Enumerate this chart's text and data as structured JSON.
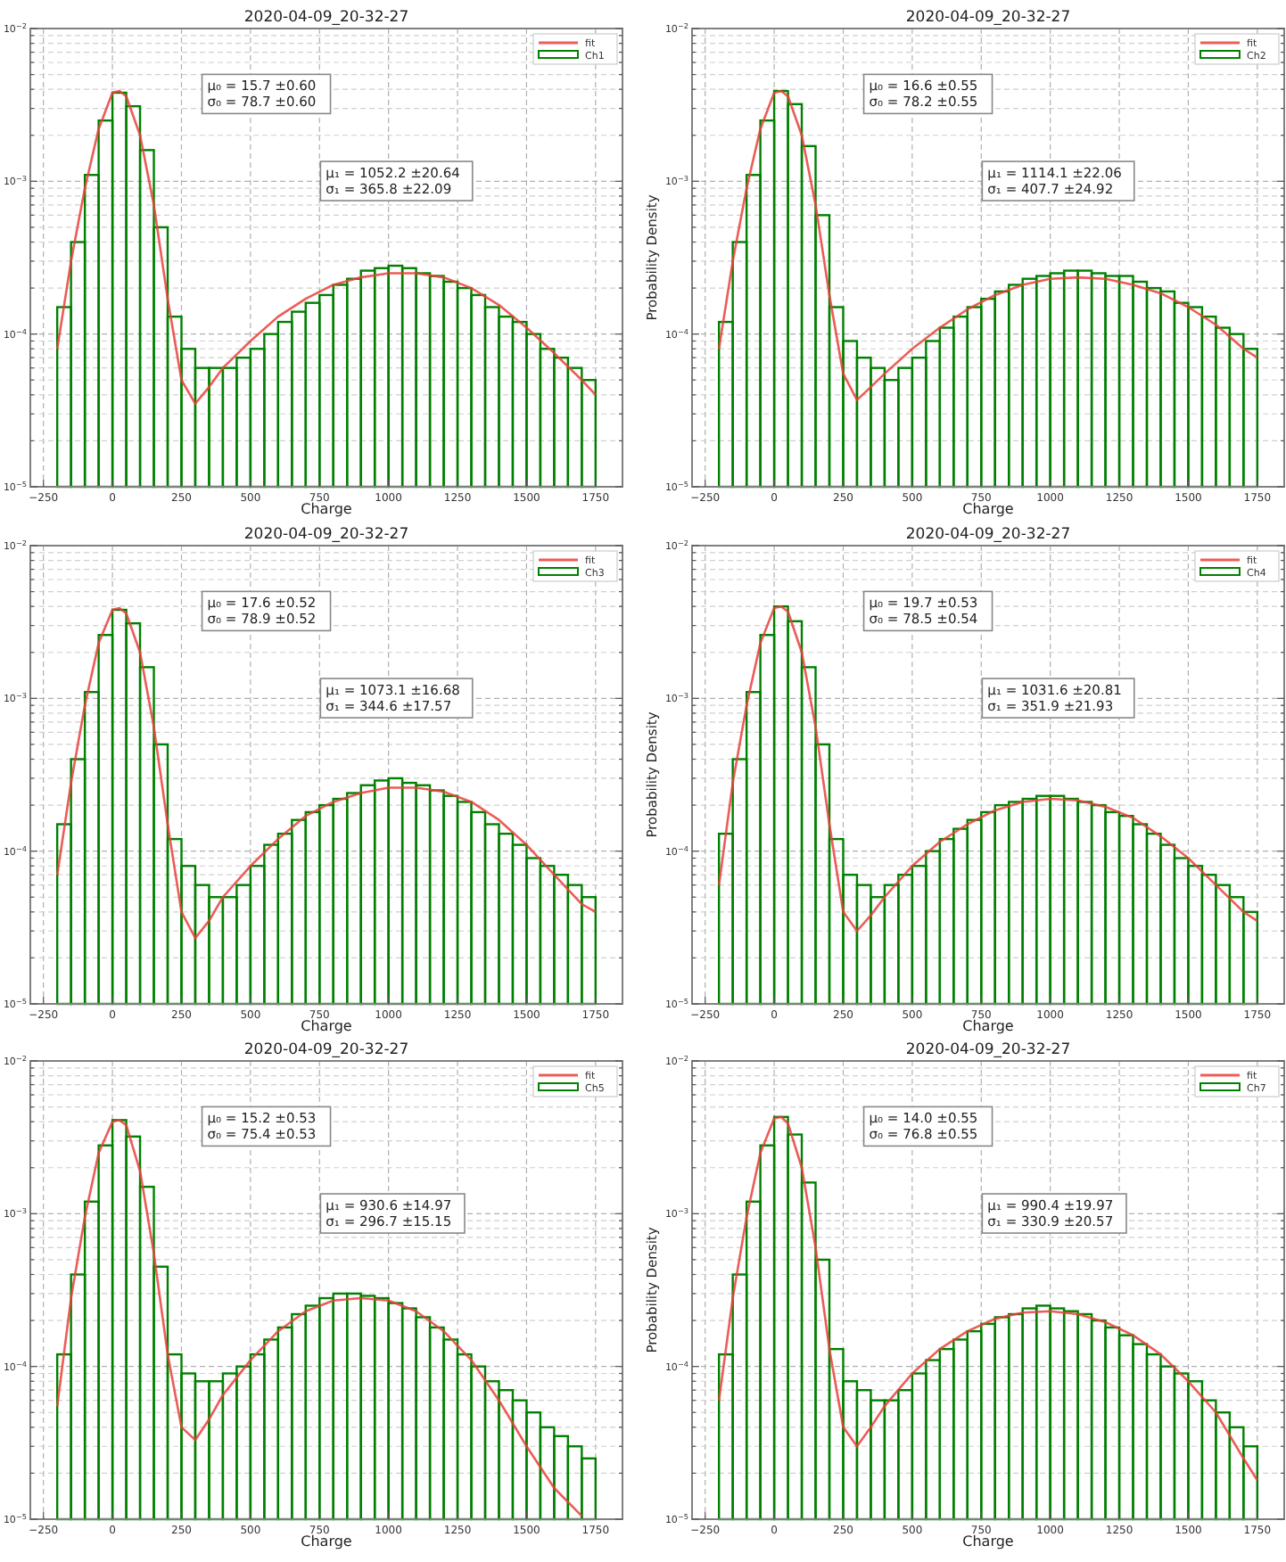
{
  "chart_data": [
    {
      "type": "histogram",
      "title": "2020-04-09_20-32-27",
      "xlabel": "Charge",
      "log": "y",
      "grid": true,
      "legend": "top right",
      "xlim": [
        -297.5,
        1847.5
      ],
      "ylim": [
        1e-05,
        0.01
      ],
      "xticks": [
        -250,
        0,
        250,
        500,
        750,
        1000,
        1250,
        1500,
        1750
      ],
      "yticks": [
        {
          "value": 1e-05,
          "label": "10$^{−5}$"
        },
        {
          "value": 2e-05,
          "label": null
        },
        {
          "value": 3e-05,
          "label": null
        },
        {
          "value": 4e-05,
          "label": null
        },
        {
          "value": 5e-05,
          "label": null
        },
        {
          "value": 6e-05,
          "label": null
        },
        {
          "value": 7e-05,
          "label": null
        },
        {
          "value": 8e-05,
          "label": null
        },
        {
          "value": 9e-05,
          "label": null
        },
        {
          "value": 0.0001,
          "label": "10$^{−4}$"
        },
        {
          "value": 0.0002,
          "label": null
        },
        {
          "value": 0.0003,
          "label": null
        },
        {
          "value": 0.0004,
          "label": null
        },
        {
          "value": 0.0005,
          "label": null
        },
        {
          "value": 0.0006,
          "label": null
        },
        {
          "value": 0.0007,
          "label": null
        },
        {
          "value": 0.0008,
          "label": null
        },
        {
          "value": 0.0009,
          "label": null
        },
        {
          "value": 0.001,
          "label": "10$^{−3}$"
        },
        {
          "value": 0.002,
          "label": null
        },
        {
          "value": 0.003,
          "label": null
        },
        {
          "value": 0.004,
          "label": null
        },
        {
          "value": 0.005,
          "label": null
        },
        {
          "value": 0.006,
          "label": null
        },
        {
          "value": 0.007,
          "label": null
        },
        {
          "value": 0.008,
          "label": null
        },
        {
          "value": 0.009,
          "label": null
        },
        {
          "value": 0.01,
          "label": "10$^{−2}$"
        }
      ],
      "annotations": [
        "μ₀ = 15.7 ±0.60",
        "σ₀ = 78.7 ±0.60",
        "μ₁ = 1052.2 ±20.64",
        "σ₁ = 365.8 ±22.09"
      ],
      "bins": [
        -200,
        -150,
        -100,
        -50,
        0,
        50,
        100,
        150,
        200,
        250,
        300,
        350,
        400,
        450,
        500,
        550,
        600,
        650,
        700,
        750,
        800,
        850,
        900,
        950,
        1000,
        1050,
        1100,
        1150,
        1200,
        1250,
        1300,
        1350,
        1400,
        1450,
        1500,
        1550,
        1600,
        1650,
        1700,
        1750
      ],
      "series": [
        {
          "name": "fit",
          "type": "line",
          "color": "#e8413a",
          "x": [
            -200,
            -150,
            -100,
            -50,
            0,
            25,
            50,
            100,
            150,
            200,
            250,
            300,
            350,
            400,
            500,
            600,
            700,
            800,
            900,
            1000,
            1100,
            1200,
            1300,
            1400,
            1500,
            1600,
            1700,
            1750
          ],
          "values": [
            8e-05,
            0.0003,
            0.0009,
            0.0022,
            0.0038,
            0.0039,
            0.0036,
            0.002,
            0.0007,
            0.00017,
            5e-05,
            3.5e-05,
            4.5e-05,
            6e-05,
            9e-05,
            0.00013,
            0.00017,
            0.00021,
            0.000235,
            0.00025,
            0.00025,
            0.000235,
            0.0002,
            0.000155,
            0.00011,
            7.5e-05,
            5e-05,
            4e-05
          ]
        },
        {
          "name": "Ch1",
          "type": "histogram",
          "color": "#008000",
          "values": [
            0.00015,
            0.0004,
            0.0011,
            0.0025,
            0.0038,
            0.0031,
            0.0016,
            0.0005,
            0.00013,
            8e-05,
            6e-05,
            6e-05,
            6e-05,
            7e-05,
            8e-05,
            0.0001,
            0.00012,
            0.00014,
            0.00016,
            0.00018,
            0.00021,
            0.00023,
            0.00026,
            0.00027,
            0.00028,
            0.00027,
            0.00025,
            0.00024,
            0.00022,
            0.0002,
            0.00018,
            0.00015,
            0.00013,
            0.00012,
            0.0001,
            8e-05,
            7e-05,
            6e-05,
            5e-05
          ]
        }
      ]
    },
    {
      "type": "histogram",
      "title": "2020-04-09_20-32-27",
      "xlabel": "Charge",
      "ylabel": "Probability Density",
      "log": "y",
      "grid": true,
      "legend": "top right",
      "xlim": [
        -297.5,
        1847.5
      ],
      "ylim": [
        1e-05,
        0.01
      ],
      "xticks": [
        -250,
        0,
        250,
        500,
        750,
        1000,
        1250,
        1500,
        1750
      ],
      "yticks": [
        {
          "value": 1e-05,
          "label": "10$^{−5}$"
        },
        {
          "value": 2e-05,
          "label": null
        },
        {
          "value": 3e-05,
          "label": null
        },
        {
          "value": 4e-05,
          "label": null
        },
        {
          "value": 5e-05,
          "label": null
        },
        {
          "value": 6e-05,
          "label": null
        },
        {
          "value": 7e-05,
          "label": null
        },
        {
          "value": 8e-05,
          "label": null
        },
        {
          "value": 9e-05,
          "label": null
        },
        {
          "value": 0.0001,
          "label": "10$^{−4}$"
        },
        {
          "value": 0.0002,
          "label": null
        },
        {
          "value": 0.0003,
          "label": null
        },
        {
          "value": 0.0004,
          "label": null
        },
        {
          "value": 0.0005,
          "label": null
        },
        {
          "value": 0.0006,
          "label": null
        },
        {
          "value": 0.0007,
          "label": null
        },
        {
          "value": 0.0008,
          "label": null
        },
        {
          "value": 0.0009,
          "label": null
        },
        {
          "value": 0.001,
          "label": "10$^{−3}$"
        },
        {
          "value": 0.002,
          "label": null
        },
        {
          "value": 0.003,
          "label": null
        },
        {
          "value": 0.004,
          "label": null
        },
        {
          "value": 0.005,
          "label": null
        },
        {
          "value": 0.006,
          "label": null
        },
        {
          "value": 0.007,
          "label": null
        },
        {
          "value": 0.008,
          "label": null
        },
        {
          "value": 0.009,
          "label": null
        },
        {
          "value": 0.01,
          "label": "10$^{−2}$"
        }
      ],
      "annotations": [
        "μ₀ = 16.6 ±0.55",
        "σ₀ = 78.2 ±0.55",
        "μ₁ = 1114.1 ±22.06",
        "σ₁ = 407.7 ±24.92"
      ],
      "bins": [
        -200,
        -150,
        -100,
        -50,
        0,
        50,
        100,
        150,
        200,
        250,
        300,
        350,
        400,
        450,
        500,
        550,
        600,
        650,
        700,
        750,
        800,
        850,
        900,
        950,
        1000,
        1050,
        1100,
        1150,
        1200,
        1250,
        1300,
        1350,
        1400,
        1450,
        1500,
        1550,
        1600,
        1650,
        1700,
        1750
      ],
      "series": [
        {
          "name": "fit",
          "type": "line",
          "color": "#e8413a",
          "x": [
            -200,
            -150,
            -100,
            -50,
            0,
            25,
            50,
            100,
            150,
            200,
            250,
            300,
            350,
            400,
            500,
            600,
            700,
            800,
            900,
            1000,
            1100,
            1200,
            1300,
            1400,
            1500,
            1600,
            1700,
            1750
          ],
          "values": [
            8e-05,
            0.0003,
            0.0009,
            0.0022,
            0.0038,
            0.0039,
            0.0036,
            0.002,
            0.0007,
            0.00018,
            5.5e-05,
            3.7e-05,
            4.5e-05,
            5.5e-05,
            8e-05,
            0.00011,
            0.000145,
            0.00018,
            0.00021,
            0.00023,
            0.000235,
            0.00023,
            0.00021,
            0.000185,
            0.00015,
            0.000115,
            8e-05,
            7e-05
          ]
        },
        {
          "name": "Ch2",
          "type": "histogram",
          "color": "#008000",
          "values": [
            0.00012,
            0.0004,
            0.0011,
            0.0025,
            0.0039,
            0.0032,
            0.0017,
            0.0006,
            0.00015,
            9e-05,
            7e-05,
            6e-05,
            5e-05,
            6e-05,
            7e-05,
            9e-05,
            0.00011,
            0.00013,
            0.00015,
            0.00017,
            0.00019,
            0.00021,
            0.00023,
            0.00024,
            0.00025,
            0.00026,
            0.00026,
            0.00025,
            0.00024,
            0.00024,
            0.00022,
            0.0002,
            0.00019,
            0.00016,
            0.00015,
            0.00013,
            0.00011,
            0.0001,
            8e-05
          ]
        }
      ]
    },
    {
      "type": "histogram",
      "title": "2020-04-09_20-32-27",
      "xlabel": "Charge",
      "log": "y",
      "grid": true,
      "legend": "top right",
      "xlim": [
        -297.5,
        1847.5
      ],
      "ylim": [
        1e-05,
        0.01
      ],
      "xticks": [
        -250,
        0,
        250,
        500,
        750,
        1000,
        1250,
        1500,
        1750
      ],
      "yticks": [
        {
          "value": 1e-05,
          "label": "10$^{−5}$"
        },
        {
          "value": 2e-05,
          "label": null
        },
        {
          "value": 3e-05,
          "label": null
        },
        {
          "value": 4e-05,
          "label": null
        },
        {
          "value": 5e-05,
          "label": null
        },
        {
          "value": 6e-05,
          "label": null
        },
        {
          "value": 7e-05,
          "label": null
        },
        {
          "value": 8e-05,
          "label": null
        },
        {
          "value": 9e-05,
          "label": null
        },
        {
          "value": 0.0001,
          "label": "10$^{−4}$"
        },
        {
          "value": 0.0002,
          "label": null
        },
        {
          "value": 0.0003,
          "label": null
        },
        {
          "value": 0.0004,
          "label": null
        },
        {
          "value": 0.0005,
          "label": null
        },
        {
          "value": 0.0006,
          "label": null
        },
        {
          "value": 0.0007,
          "label": null
        },
        {
          "value": 0.0008,
          "label": null
        },
        {
          "value": 0.0009,
          "label": null
        },
        {
          "value": 0.001,
          "label": "10$^{−3}$"
        },
        {
          "value": 0.002,
          "label": null
        },
        {
          "value": 0.003,
          "label": null
        },
        {
          "value": 0.004,
          "label": null
        },
        {
          "value": 0.005,
          "label": null
        },
        {
          "value": 0.006,
          "label": null
        },
        {
          "value": 0.007,
          "label": null
        },
        {
          "value": 0.008,
          "label": null
        },
        {
          "value": 0.009,
          "label": null
        },
        {
          "value": 0.01,
          "label": "10$^{−2}$"
        }
      ],
      "annotations": [
        "μ₀ = 17.6 ±0.52",
        "σ₀ = 78.9 ±0.52",
        "μ₁ = 1073.1 ±16.68",
        "σ₁ = 344.6 ±17.57"
      ],
      "bins": [
        -200,
        -150,
        -100,
        -50,
        0,
        50,
        100,
        150,
        200,
        250,
        300,
        350,
        400,
        450,
        500,
        550,
        600,
        650,
        700,
        750,
        800,
        850,
        900,
        950,
        1000,
        1050,
        1100,
        1150,
        1200,
        1250,
        1300,
        1350,
        1400,
        1450,
        1500,
        1550,
        1600,
        1650,
        1700,
        1750
      ],
      "series": [
        {
          "name": "fit",
          "type": "line",
          "color": "#e8413a",
          "x": [
            -200,
            -150,
            -100,
            -50,
            0,
            25,
            50,
            100,
            150,
            200,
            250,
            300,
            350,
            400,
            500,
            600,
            700,
            800,
            900,
            1000,
            1100,
            1200,
            1300,
            1400,
            1500,
            1600,
            1700,
            1750
          ],
          "values": [
            7e-05,
            0.00028,
            0.0009,
            0.0023,
            0.0038,
            0.0039,
            0.0036,
            0.002,
            0.00065,
            0.00015,
            4e-05,
            2.7e-05,
            3.5e-05,
            5e-05,
            8e-05,
            0.00012,
            0.00017,
            0.00021,
            0.00024,
            0.00026,
            0.00026,
            0.000245,
            0.00021,
            0.00016,
            0.00011,
            7e-05,
            4.5e-05,
            4e-05
          ]
        },
        {
          "name": "Ch3",
          "type": "histogram",
          "color": "#008000",
          "values": [
            0.00015,
            0.0004,
            0.0011,
            0.0026,
            0.0038,
            0.0031,
            0.0016,
            0.0005,
            0.00012,
            8e-05,
            6e-05,
            5e-05,
            5e-05,
            6e-05,
            8e-05,
            0.00011,
            0.00013,
            0.00016,
            0.00018,
            0.0002,
            0.00022,
            0.00024,
            0.00027,
            0.00029,
            0.0003,
            0.00028,
            0.00027,
            0.00025,
            0.00023,
            0.00021,
            0.00018,
            0.00015,
            0.00013,
            0.00011,
            9e-05,
            8e-05,
            7e-05,
            6e-05,
            5e-05
          ]
        }
      ]
    },
    {
      "type": "histogram",
      "title": "2020-04-09_20-32-27",
      "xlabel": "Charge",
      "ylabel": "Probability Density",
      "log": "y",
      "grid": true,
      "legend": "top right",
      "xlim": [
        -297.5,
        1847.5
      ],
      "ylim": [
        1e-05,
        0.01
      ],
      "xticks": [
        -250,
        0,
        250,
        500,
        750,
        1000,
        1250,
        1500,
        1750
      ],
      "yticks": [
        {
          "value": 1e-05,
          "label": "10$^{−5}$"
        },
        {
          "value": 2e-05,
          "label": null
        },
        {
          "value": 3e-05,
          "label": null
        },
        {
          "value": 4e-05,
          "label": null
        },
        {
          "value": 5e-05,
          "label": null
        },
        {
          "value": 6e-05,
          "label": null
        },
        {
          "value": 7e-05,
          "label": null
        },
        {
          "value": 8e-05,
          "label": null
        },
        {
          "value": 9e-05,
          "label": null
        },
        {
          "value": 0.0001,
          "label": "10$^{−4}$"
        },
        {
          "value": 0.0002,
          "label": null
        },
        {
          "value": 0.0003,
          "label": null
        },
        {
          "value": 0.0004,
          "label": null
        },
        {
          "value": 0.0005,
          "label": null
        },
        {
          "value": 0.0006,
          "label": null
        },
        {
          "value": 0.0007,
          "label": null
        },
        {
          "value": 0.0008,
          "label": null
        },
        {
          "value": 0.0009,
          "label": null
        },
        {
          "value": 0.001,
          "label": "10$^{−3}$"
        },
        {
          "value": 0.002,
          "label": null
        },
        {
          "value": 0.003,
          "label": null
        },
        {
          "value": 0.004,
          "label": null
        },
        {
          "value": 0.005,
          "label": null
        },
        {
          "value": 0.006,
          "label": null
        },
        {
          "value": 0.007,
          "label": null
        },
        {
          "value": 0.008,
          "label": null
        },
        {
          "value": 0.009,
          "label": null
        },
        {
          "value": 0.01,
          "label": "10$^{−2}$"
        }
      ],
      "annotations": [
        "μ₀ = 19.7 ±0.53",
        "σ₀ = 78.5 ±0.54",
        "μ₁ = 1031.6 ±20.81",
        "σ₁ = 351.9 ±21.93"
      ],
      "bins": [
        -200,
        -150,
        -100,
        -50,
        0,
        50,
        100,
        150,
        200,
        250,
        300,
        350,
        400,
        450,
        500,
        550,
        600,
        650,
        700,
        750,
        800,
        850,
        900,
        950,
        1000,
        1050,
        1100,
        1150,
        1200,
        1250,
        1300,
        1350,
        1400,
        1450,
        1500,
        1550,
        1600,
        1650,
        1700,
        1750
      ],
      "series": [
        {
          "name": "fit",
          "type": "line",
          "color": "#e8413a",
          "x": [
            -200,
            -150,
            -100,
            -50,
            0,
            25,
            50,
            100,
            150,
            200,
            250,
            300,
            350,
            400,
            500,
            600,
            700,
            800,
            900,
            1000,
            1100,
            1200,
            1300,
            1400,
            1500,
            1600,
            1700,
            1750
          ],
          "values": [
            6e-05,
            0.00028,
            0.0009,
            0.0023,
            0.0039,
            0.004,
            0.0037,
            0.002,
            0.00065,
            0.00015,
            4e-05,
            3e-05,
            3.8e-05,
            5e-05,
            8e-05,
            0.000115,
            0.00015,
            0.000185,
            0.00021,
            0.00022,
            0.000215,
            0.000195,
            0.000165,
            0.000125,
            9e-05,
            6e-05,
            4e-05,
            3.5e-05
          ]
        },
        {
          "name": "Ch4",
          "type": "histogram",
          "color": "#008000",
          "values": [
            0.00013,
            0.0004,
            0.0011,
            0.0026,
            0.004,
            0.0032,
            0.0016,
            0.0005,
            0.00012,
            7e-05,
            6e-05,
            5e-05,
            6e-05,
            7e-05,
            8e-05,
            0.0001,
            0.00012,
            0.00014,
            0.00016,
            0.00018,
            0.0002,
            0.00021,
            0.00022,
            0.00023,
            0.00023,
            0.00022,
            0.00021,
            0.0002,
            0.00018,
            0.00017,
            0.00015,
            0.00013,
            0.00011,
            9e-05,
            8e-05,
            7e-05,
            6e-05,
            5e-05,
            4e-05
          ]
        }
      ]
    },
    {
      "type": "histogram",
      "title": "2020-04-09_20-32-27",
      "xlabel": "Charge",
      "log": "y",
      "grid": true,
      "legend": "top right",
      "xlim": [
        -297.5,
        1847.5
      ],
      "ylim": [
        1e-05,
        0.01
      ],
      "xticks": [
        -250,
        0,
        250,
        500,
        750,
        1000,
        1250,
        1500,
        1750
      ],
      "yticks": [
        {
          "value": 1e-05,
          "label": "10$^{−5}$"
        },
        {
          "value": 2e-05,
          "label": null
        },
        {
          "value": 3e-05,
          "label": null
        },
        {
          "value": 4e-05,
          "label": null
        },
        {
          "value": 5e-05,
          "label": null
        },
        {
          "value": 6e-05,
          "label": null
        },
        {
          "value": 7e-05,
          "label": null
        },
        {
          "value": 8e-05,
          "label": null
        },
        {
          "value": 9e-05,
          "label": null
        },
        {
          "value": 0.0001,
          "label": "10$^{−4}$"
        },
        {
          "value": 0.0002,
          "label": null
        },
        {
          "value": 0.0003,
          "label": null
        },
        {
          "value": 0.0004,
          "label": null
        },
        {
          "value": 0.0005,
          "label": null
        },
        {
          "value": 0.0006,
          "label": null
        },
        {
          "value": 0.0007,
          "label": null
        },
        {
          "value": 0.0008,
          "label": null
        },
        {
          "value": 0.0009,
          "label": null
        },
        {
          "value": 0.001,
          "label": "10$^{−3}$"
        },
        {
          "value": 0.002,
          "label": null
        },
        {
          "value": 0.003,
          "label": null
        },
        {
          "value": 0.004,
          "label": null
        },
        {
          "value": 0.005,
          "label": null
        },
        {
          "value": 0.006,
          "label": null
        },
        {
          "value": 0.007,
          "label": null
        },
        {
          "value": 0.008,
          "label": null
        },
        {
          "value": 0.009,
          "label": null
        },
        {
          "value": 0.01,
          "label": "10$^{−2}$"
        }
      ],
      "annotations": [
        "μ₀ = 15.2 ±0.53",
        "σ₀ = 75.4 ±0.53",
        "μ₁ = 930.6 ±14.97",
        "σ₁ = 296.7 ±15.15"
      ],
      "bins": [
        -200,
        -150,
        -100,
        -50,
        0,
        50,
        100,
        150,
        200,
        250,
        300,
        350,
        400,
        450,
        500,
        550,
        600,
        650,
        700,
        750,
        800,
        850,
        900,
        950,
        1000,
        1050,
        1100,
        1150,
        1200,
        1250,
        1300,
        1350,
        1400,
        1450,
        1500,
        1550,
        1600,
        1650,
        1700,
        1750
      ],
      "series": [
        {
          "name": "fit",
          "type": "line",
          "color": "#e8413a",
          "x": [
            -200,
            -150,
            -100,
            -50,
            0,
            25,
            50,
            100,
            150,
            200,
            250,
            300,
            350,
            400,
            500,
            600,
            700,
            800,
            900,
            1000,
            1100,
            1200,
            1300,
            1400,
            1500,
            1600,
            1700
          ],
          "values": [
            5.5e-05,
            0.00028,
            0.00095,
            0.0025,
            0.004,
            0.0041,
            0.0038,
            0.0019,
            0.00055,
            0.00012,
            4e-05,
            3.3e-05,
            4.5e-05,
            6.5e-05,
            0.00011,
            0.00017,
            0.00023,
            0.00027,
            0.00028,
            0.00027,
            0.00023,
            0.00017,
            0.00011,
            6e-05,
            3e-05,
            1.6e-05,
            1.05e-05
          ]
        },
        {
          "name": "Ch5",
          "type": "histogram",
          "color": "#008000",
          "values": [
            0.00012,
            0.0004,
            0.0012,
            0.0028,
            0.0041,
            0.0032,
            0.0015,
            0.00045,
            0.00012,
            9e-05,
            8e-05,
            8e-05,
            9e-05,
            0.0001,
            0.00012,
            0.00015,
            0.00018,
            0.00022,
            0.00025,
            0.00028,
            0.0003,
            0.0003,
            0.00029,
            0.00028,
            0.00026,
            0.00024,
            0.00021,
            0.00018,
            0.00015,
            0.00012,
            0.0001,
            8e-05,
            7e-05,
            6e-05,
            5e-05,
            4e-05,
            3.5e-05,
            3e-05,
            2.5e-05
          ]
        }
      ]
    },
    {
      "type": "histogram",
      "title": "2020-04-09_20-32-27",
      "xlabel": "Charge",
      "ylabel": "Probability Density",
      "log": "y",
      "grid": true,
      "legend": "top right",
      "xlim": [
        -297.5,
        1847.5
      ],
      "ylim": [
        1e-05,
        0.01
      ],
      "xticks": [
        -250,
        0,
        250,
        500,
        750,
        1000,
        1250,
        1500,
        1750
      ],
      "yticks": [
        {
          "value": 1e-05,
          "label": "10$^{−5}$"
        },
        {
          "value": 2e-05,
          "label": null
        },
        {
          "value": 3e-05,
          "label": null
        },
        {
          "value": 4e-05,
          "label": null
        },
        {
          "value": 5e-05,
          "label": null
        },
        {
          "value": 6e-05,
          "label": null
        },
        {
          "value": 7e-05,
          "label": null
        },
        {
          "value": 8e-05,
          "label": null
        },
        {
          "value": 9e-05,
          "label": null
        },
        {
          "value": 0.0001,
          "label": "10$^{−4}$"
        },
        {
          "value": 0.0002,
          "label": null
        },
        {
          "value": 0.0003,
          "label": null
        },
        {
          "value": 0.0004,
          "label": null
        },
        {
          "value": 0.0005,
          "label": null
        },
        {
          "value": 0.0006,
          "label": null
        },
        {
          "value": 0.0007,
          "label": null
        },
        {
          "value": 0.0008,
          "label": null
        },
        {
          "value": 0.0009,
          "label": null
        },
        {
          "value": 0.001,
          "label": "10$^{−3}$"
        },
        {
          "value": 0.002,
          "label": null
        },
        {
          "value": 0.003,
          "label": null
        },
        {
          "value": 0.004,
          "label": null
        },
        {
          "value": 0.005,
          "label": null
        },
        {
          "value": 0.006,
          "label": null
        },
        {
          "value": 0.007,
          "label": null
        },
        {
          "value": 0.008,
          "label": null
        },
        {
          "value": 0.009,
          "label": null
        },
        {
          "value": 0.01,
          "label": "10$^{−2}$"
        }
      ],
      "annotations": [
        "μ₀ = 14.0 ±0.55",
        "σ₀ = 76.8 ±0.55",
        "μ₁ = 990.4 ±19.97",
        "σ₁ = 330.9 ±20.57"
      ],
      "bins": [
        -200,
        -150,
        -100,
        -50,
        0,
        50,
        100,
        150,
        200,
        250,
        300,
        350,
        400,
        450,
        500,
        550,
        600,
        650,
        700,
        750,
        800,
        850,
        900,
        950,
        1000,
        1050,
        1100,
        1150,
        1200,
        1250,
        1300,
        1350,
        1400,
        1450,
        1500,
        1550,
        1600,
        1650,
        1700,
        1750
      ],
      "series": [
        {
          "name": "fit",
          "type": "line",
          "color": "#e8413a",
          "x": [
            -200,
            -150,
            -100,
            -50,
            0,
            25,
            50,
            100,
            150,
            200,
            250,
            300,
            350,
            400,
            500,
            600,
            700,
            800,
            900,
            1000,
            1100,
            1200,
            1300,
            1400,
            1500,
            1600,
            1700,
            1750
          ],
          "values": [
            6e-05,
            0.00028,
            0.00095,
            0.0025,
            0.0042,
            0.0043,
            0.0039,
            0.002,
            0.0006,
            0.00013,
            4e-05,
            3e-05,
            4e-05,
            5.5e-05,
            9e-05,
            0.00013,
            0.00017,
            0.000205,
            0.000225,
            0.00023,
            0.00022,
            0.000195,
            0.00016,
            0.00012,
            8e-05,
            5e-05,
            2.5e-05,
            1.8e-05
          ]
        },
        {
          "name": "Ch7",
          "type": "histogram",
          "color": "#008000",
          "values": [
            0.00012,
            0.0004,
            0.0012,
            0.0028,
            0.0043,
            0.0033,
            0.0016,
            0.0005,
            0.00013,
            8e-05,
            7e-05,
            6e-05,
            6e-05,
            7e-05,
            9e-05,
            0.00011,
            0.00013,
            0.00015,
            0.00017,
            0.00019,
            0.00021,
            0.00022,
            0.00024,
            0.00025,
            0.00024,
            0.00023,
            0.00022,
            0.0002,
            0.00018,
            0.00016,
            0.00014,
            0.00012,
            0.0001,
            9e-05,
            8e-05,
            6e-05,
            5e-05,
            4e-05,
            3e-05
          ]
        }
      ]
    }
  ]
}
